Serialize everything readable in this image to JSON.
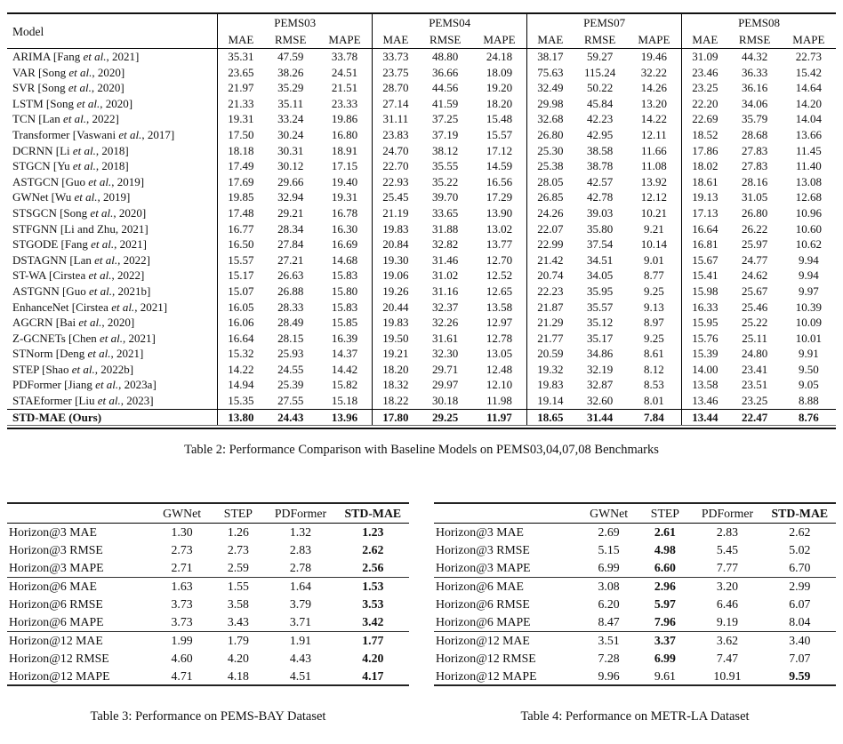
{
  "table2": {
    "caption": "Table 2: Performance Comparison with Baseline Models on PEMS03,04,07,08 Benchmarks",
    "model_header": "Model",
    "groups": [
      "PEMS03",
      "PEMS04",
      "PEMS07",
      "PEMS08"
    ],
    "metrics": [
      "MAE",
      "RMSE",
      "MAPE"
    ],
    "rows": [
      {
        "model": "ARIMA [Fang et al., 2021]",
        "values": [
          "35.31",
          "47.59",
          "33.78",
          "33.73",
          "48.80",
          "24.18",
          "38.17",
          "59.27",
          "19.46",
          "31.09",
          "44.32",
          "22.73"
        ],
        "bold": false
      },
      {
        "model": "VAR [Song et al., 2020]",
        "values": [
          "23.65",
          "38.26",
          "24.51",
          "23.75",
          "36.66",
          "18.09",
          "75.63",
          "115.24",
          "32.22",
          "23.46",
          "36.33",
          "15.42"
        ],
        "bold": false
      },
      {
        "model": "SVR [Song et al., 2020]",
        "values": [
          "21.97",
          "35.29",
          "21.51",
          "28.70",
          "44.56",
          "19.20",
          "32.49",
          "50.22",
          "14.26",
          "23.25",
          "36.16",
          "14.64"
        ],
        "bold": false
      },
      {
        "model": "LSTM [Song et al., 2020]",
        "values": [
          "21.33",
          "35.11",
          "23.33",
          "27.14",
          "41.59",
          "18.20",
          "29.98",
          "45.84",
          "13.20",
          "22.20",
          "34.06",
          "14.20"
        ],
        "bold": false
      },
      {
        "model": "TCN [Lan et al., 2022]",
        "values": [
          "19.31",
          "33.24",
          "19.86",
          "31.11",
          "37.25",
          "15.48",
          "32.68",
          "42.23",
          "14.22",
          "22.69",
          "35.79",
          "14.04"
        ],
        "bold": false
      },
      {
        "model": "Transformer [Vaswani et al., 2017]",
        "values": [
          "17.50",
          "30.24",
          "16.80",
          "23.83",
          "37.19",
          "15.57",
          "26.80",
          "42.95",
          "12.11",
          "18.52",
          "28.68",
          "13.66"
        ],
        "bold": false
      },
      {
        "model": "DCRNN [Li et al., 2018]",
        "values": [
          "18.18",
          "30.31",
          "18.91",
          "24.70",
          "38.12",
          "17.12",
          "25.30",
          "38.58",
          "11.66",
          "17.86",
          "27.83",
          "11.45"
        ],
        "bold": false
      },
      {
        "model": "STGCN [Yu et al., 2018]",
        "values": [
          "17.49",
          "30.12",
          "17.15",
          "22.70",
          "35.55",
          "14.59",
          "25.38",
          "38.78",
          "11.08",
          "18.02",
          "27.83",
          "11.40"
        ],
        "bold": false
      },
      {
        "model": "ASTGCN [Guo et al., 2019]",
        "values": [
          "17.69",
          "29.66",
          "19.40",
          "22.93",
          "35.22",
          "16.56",
          "28.05",
          "42.57",
          "13.92",
          "18.61",
          "28.16",
          "13.08"
        ],
        "bold": false
      },
      {
        "model": "GWNet [Wu et al., 2019]",
        "values": [
          "19.85",
          "32.94",
          "19.31",
          "25.45",
          "39.70",
          "17.29",
          "26.85",
          "42.78",
          "12.12",
          "19.13",
          "31.05",
          "12.68"
        ],
        "bold": false
      },
      {
        "model": "STSGCN [Song et al., 2020]",
        "values": [
          "17.48",
          "29.21",
          "16.78",
          "21.19",
          "33.65",
          "13.90",
          "24.26",
          "39.03",
          "10.21",
          "17.13",
          "26.80",
          "10.96"
        ],
        "bold": false
      },
      {
        "model": "STFGNN [Li and Zhu, 2021]",
        "values": [
          "16.77",
          "28.34",
          "16.30",
          "19.83",
          "31.88",
          "13.02",
          "22.07",
          "35.80",
          "9.21",
          "16.64",
          "26.22",
          "10.60"
        ],
        "bold": false
      },
      {
        "model": "STGODE [Fang et al., 2021]",
        "values": [
          "16.50",
          "27.84",
          "16.69",
          "20.84",
          "32.82",
          "13.77",
          "22.99",
          "37.54",
          "10.14",
          "16.81",
          "25.97",
          "10.62"
        ],
        "bold": false
      },
      {
        "model": "DSTAGNN [Lan et al., 2022]",
        "values": [
          "15.57",
          "27.21",
          "14.68",
          "19.30",
          "31.46",
          "12.70",
          "21.42",
          "34.51",
          "9.01",
          "15.67",
          "24.77",
          "9.94"
        ],
        "bold": false
      },
      {
        "model": "ST-WA [Cirstea et al., 2022]",
        "values": [
          "15.17",
          "26.63",
          "15.83",
          "19.06",
          "31.02",
          "12.52",
          "20.74",
          "34.05",
          "8.77",
          "15.41",
          "24.62",
          "9.94"
        ],
        "bold": false
      },
      {
        "model": "ASTGNN [Guo et al., 2021b]",
        "values": [
          "15.07",
          "26.88",
          "15.80",
          "19.26",
          "31.16",
          "12.65",
          "22.23",
          "35.95",
          "9.25",
          "15.98",
          "25.67",
          "9.97"
        ],
        "bold": false
      },
      {
        "model": "EnhanceNet [Cirstea et al., 2021]",
        "values": [
          "16.05",
          "28.33",
          "15.83",
          "20.44",
          "32.37",
          "13.58",
          "21.87",
          "35.57",
          "9.13",
          "16.33",
          "25.46",
          "10.39"
        ],
        "bold": false
      },
      {
        "model": "AGCRN [Bai et al., 2020]",
        "values": [
          "16.06",
          "28.49",
          "15.85",
          "19.83",
          "32.26",
          "12.97",
          "21.29",
          "35.12",
          "8.97",
          "15.95",
          "25.22",
          "10.09"
        ],
        "bold": false
      },
      {
        "model": "Z-GCNETs [Chen et al., 2021]",
        "values": [
          "16.64",
          "28.15",
          "16.39",
          "19.50",
          "31.61",
          "12.78",
          "21.77",
          "35.17",
          "9.25",
          "15.76",
          "25.11",
          "10.01"
        ],
        "bold": false
      },
      {
        "model": "STNorm [Deng et al., 2021]",
        "values": [
          "15.32",
          "25.93",
          "14.37",
          "19.21",
          "32.30",
          "13.05",
          "20.59",
          "34.86",
          "8.61",
          "15.39",
          "24.80",
          "9.91"
        ],
        "bold": false
      },
      {
        "model": "STEP [Shao et al., 2022b]",
        "values": [
          "14.22",
          "24.55",
          "14.42",
          "18.20",
          "29.71",
          "12.48",
          "19.32",
          "32.19",
          "8.12",
          "14.00",
          "23.41",
          "9.50"
        ],
        "bold": false
      },
      {
        "model": "PDFormer [Jiang et al., 2023a]",
        "values": [
          "14.94",
          "25.39",
          "15.82",
          "18.32",
          "29.97",
          "12.10",
          "19.83",
          "32.87",
          "8.53",
          "13.58",
          "23.51",
          "9.05"
        ],
        "bold": false
      },
      {
        "model": "STAEformer [Liu et al., 2023]",
        "values": [
          "15.35",
          "27.55",
          "15.18",
          "18.22",
          "30.18",
          "11.98",
          "19.14",
          "32.60",
          "8.01",
          "13.46",
          "23.25",
          "8.88"
        ],
        "bold": false
      },
      {
        "model": "STD-MAE (Ours)",
        "values": [
          "13.80",
          "24.43",
          "13.96",
          "17.80",
          "29.25",
          "11.97",
          "18.65",
          "31.44",
          "7.84",
          "13.44",
          "22.47",
          "8.76"
        ],
        "bold": true
      }
    ]
  },
  "table3": {
    "caption": "Table 3: Performance on PEMS-BAY Dataset",
    "columns": [
      "GWNet",
      "STEP",
      "PDFormer",
      "STD-MAE"
    ],
    "rows": [
      {
        "label": "Horizon@3 MAE",
        "values": [
          "1.30",
          "1.26",
          "1.32",
          "1.23"
        ],
        "bold_col": 3
      },
      {
        "label": "Horizon@3 RMSE",
        "values": [
          "2.73",
          "2.73",
          "2.83",
          "2.62"
        ],
        "bold_col": 3
      },
      {
        "label": "Horizon@3 MAPE",
        "values": [
          "2.71",
          "2.59",
          "2.78",
          "2.56"
        ],
        "bold_col": 3
      },
      {
        "label": "Horizon@6 MAE",
        "values": [
          "1.63",
          "1.55",
          "1.64",
          "1.53"
        ],
        "bold_col": 3
      },
      {
        "label": "Horizon@6 RMSE",
        "values": [
          "3.73",
          "3.58",
          "3.79",
          "3.53"
        ],
        "bold_col": 3
      },
      {
        "label": "Horizon@6 MAPE",
        "values": [
          "3.73",
          "3.43",
          "3.71",
          "3.42"
        ],
        "bold_col": 3
      },
      {
        "label": "Horizon@12 MAE",
        "values": [
          "1.99",
          "1.79",
          "1.91",
          "1.77"
        ],
        "bold_col": 3
      },
      {
        "label": "Horizon@12 RMSE",
        "values": [
          "4.60",
          "4.20",
          "4.43",
          "4.20"
        ],
        "bold_col": 3
      },
      {
        "label": "Horizon@12 MAPE",
        "values": [
          "4.71",
          "4.18",
          "4.51",
          "4.17"
        ],
        "bold_col": 3
      }
    ]
  },
  "table4": {
    "caption": "Table 4: Performance on METR-LA Dataset",
    "columns": [
      "GWNet",
      "STEP",
      "PDFormer",
      "STD-MAE"
    ],
    "rows": [
      {
        "label": "Horizon@3 MAE",
        "values": [
          "2.69",
          "2.61",
          "2.83",
          "2.62"
        ],
        "bold_col": 1
      },
      {
        "label": "Horizon@3 RMSE",
        "values": [
          "5.15",
          "4.98",
          "5.45",
          "5.02"
        ],
        "bold_col": 1
      },
      {
        "label": "Horizon@3 MAPE",
        "values": [
          "6.99",
          "6.60",
          "7.77",
          "6.70"
        ],
        "bold_col": 1
      },
      {
        "label": "Horizon@6 MAE",
        "values": [
          "3.08",
          "2.96",
          "3.20",
          "2.99"
        ],
        "bold_col": 1
      },
      {
        "label": "Horizon@6 RMSE",
        "values": [
          "6.20",
          "5.97",
          "6.46",
          "6.07"
        ],
        "bold_col": 1
      },
      {
        "label": "Horizon@6 MAPE",
        "values": [
          "8.47",
          "7.96",
          "9.19",
          "8.04"
        ],
        "bold_col": 1
      },
      {
        "label": "Horizon@12 MAE",
        "values": [
          "3.51",
          "3.37",
          "3.62",
          "3.40"
        ],
        "bold_col": 1
      },
      {
        "label": "Horizon@12 RMSE",
        "values": [
          "7.28",
          "6.99",
          "7.47",
          "7.07"
        ],
        "bold_col": 1
      },
      {
        "label": "Horizon@12 MAPE",
        "values": [
          "9.96",
          "9.61",
          "10.91",
          "9.59"
        ],
        "bold_col": 3
      }
    ]
  }
}
